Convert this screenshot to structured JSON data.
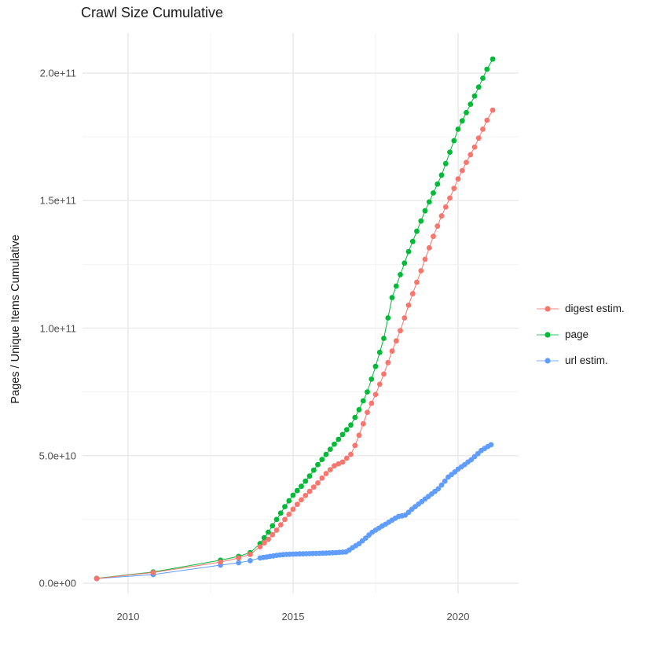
{
  "title": "Crawl Size Cumulative",
  "chart_data": {
    "type": "scatter",
    "title": "Crawl Size Cumulative",
    "xlabel": "",
    "ylabel": "Pages / Unique Items Cumulative",
    "value_unit": "billions (1e9) of pages / unique items",
    "xlim": [
      2008.6,
      2021.85
    ],
    "ylim_billions": [
      -4,
      215
    ],
    "grid": true,
    "legend_position": "right",
    "x_ticks": {
      "labels": [
        "2010",
        "2015",
        "2020"
      ],
      "years": [
        2010,
        2015,
        2020
      ]
    },
    "x_minor_years": [
      2012.5,
      2017.5
    ],
    "y_ticks": {
      "labels": [
        "0.0e+00",
        "5.0e+10",
        "1.0e+11",
        "1.5e+11",
        "2.0e+11"
      ],
      "values_billions": [
        0,
        50,
        100,
        150,
        200
      ]
    },
    "y_minor_billions": [
      25,
      75,
      125,
      175
    ],
    "series": [
      {
        "name": "digest estim.",
        "color": "#F8766D",
        "points": [
          [
            2009.05,
            1.85
          ],
          [
            2010.76,
            4.2
          ],
          [
            2012.8,
            8.3
          ],
          [
            2013.35,
            9.9
          ],
          [
            2013.7,
            11.3
          ],
          [
            2014.0,
            14.3
          ],
          [
            2014.125,
            15.8
          ],
          [
            2014.25,
            17.2
          ],
          [
            2014.375,
            19.0
          ],
          [
            2014.5,
            20.8
          ],
          [
            2014.625,
            22.9
          ],
          [
            2014.75,
            25.0
          ],
          [
            2014.875,
            27.0
          ],
          [
            2015.0,
            29.0
          ],
          [
            2015.125,
            30.9
          ],
          [
            2015.25,
            32.7
          ],
          [
            2015.375,
            34.4
          ],
          [
            2015.5,
            36.0
          ],
          [
            2015.625,
            37.7
          ],
          [
            2015.75,
            39.3
          ],
          [
            2015.875,
            41.2
          ],
          [
            2016.0,
            43.0
          ],
          [
            2016.125,
            44.5
          ],
          [
            2016.25,
            46.0
          ],
          [
            2016.375,
            46.8
          ],
          [
            2016.5,
            47.5
          ],
          [
            2016.625,
            49.0
          ],
          [
            2016.75,
            50.5
          ],
          [
            2016.875,
            54.0
          ],
          [
            2017.0,
            58.0
          ],
          [
            2017.125,
            62.5
          ],
          [
            2017.25,
            67.0
          ],
          [
            2017.375,
            70.5
          ],
          [
            2017.5,
            74.0
          ],
          [
            2017.625,
            78.0
          ],
          [
            2017.75,
            82.0
          ],
          [
            2017.875,
            86.5
          ],
          [
            2018.0,
            91.0
          ],
          [
            2018.125,
            95.0
          ],
          [
            2018.25,
            99.0
          ],
          [
            2018.375,
            104.0
          ],
          [
            2018.5,
            109.0
          ],
          [
            2018.625,
            113.5
          ],
          [
            2018.75,
            118.0
          ],
          [
            2018.875,
            122.5
          ],
          [
            2019.0,
            127.0
          ],
          [
            2019.125,
            131.5
          ],
          [
            2019.25,
            136.0
          ],
          [
            2019.375,
            140.0
          ],
          [
            2019.5,
            144.0
          ],
          [
            2019.625,
            147.5
          ],
          [
            2019.75,
            151.0
          ],
          [
            2019.875,
            154.8
          ],
          [
            2020.0,
            158.5
          ],
          [
            2020.125,
            161.8
          ],
          [
            2020.25,
            165.0
          ],
          [
            2020.375,
            168.0
          ],
          [
            2020.5,
            171.0
          ],
          [
            2020.625,
            174.5
          ],
          [
            2020.75,
            178.0
          ],
          [
            2020.875,
            181.5
          ],
          [
            2021.05,
            185.5
          ]
        ]
      },
      {
        "name": "page",
        "color": "#00BA38",
        "points": [
          [
            2009.05,
            1.9
          ],
          [
            2010.76,
            4.4
          ],
          [
            2012.8,
            9.0
          ],
          [
            2013.35,
            10.5
          ],
          [
            2013.7,
            12.0
          ],
          [
            2014.0,
            15.5
          ],
          [
            2014.125,
            17.8
          ],
          [
            2014.25,
            20.0
          ],
          [
            2014.375,
            22.5
          ],
          [
            2014.5,
            25.0
          ],
          [
            2014.625,
            27.5
          ],
          [
            2014.75,
            30.0
          ],
          [
            2014.875,
            32.3
          ],
          [
            2015.0,
            34.5
          ],
          [
            2015.125,
            36.3
          ],
          [
            2015.25,
            38.0
          ],
          [
            2015.375,
            40.0
          ],
          [
            2015.5,
            42.0
          ],
          [
            2015.625,
            44.3
          ],
          [
            2015.75,
            46.5
          ],
          [
            2015.875,
            48.5
          ],
          [
            2016.0,
            50.5
          ],
          [
            2016.125,
            52.5
          ],
          [
            2016.25,
            54.5
          ],
          [
            2016.375,
            56.4
          ],
          [
            2016.5,
            58.3
          ],
          [
            2016.625,
            60.2
          ],
          [
            2016.75,
            62.0
          ],
          [
            2016.875,
            65.0
          ],
          [
            2017.0,
            68.0
          ],
          [
            2017.125,
            71.5
          ],
          [
            2017.25,
            75.0
          ],
          [
            2017.375,
            80.0
          ],
          [
            2017.5,
            85.0
          ],
          [
            2017.625,
            90.5
          ],
          [
            2017.75,
            96.0
          ],
          [
            2017.875,
            104.0
          ],
          [
            2018.0,
            112.0
          ],
          [
            2018.125,
            116.5
          ],
          [
            2018.25,
            121.0
          ],
          [
            2018.375,
            125.5
          ],
          [
            2018.5,
            130.0
          ],
          [
            2018.625,
            134.0
          ],
          [
            2018.75,
            138.0
          ],
          [
            2018.875,
            142.0
          ],
          [
            2019.0,
            146.0
          ],
          [
            2019.125,
            149.5
          ],
          [
            2019.25,
            153.0
          ],
          [
            2019.375,
            156.5
          ],
          [
            2019.5,
            160.0
          ],
          [
            2019.625,
            164.5
          ],
          [
            2019.75,
            169.0
          ],
          [
            2019.875,
            173.5
          ],
          [
            2020.0,
            178.0
          ],
          [
            2020.125,
            181.3
          ],
          [
            2020.25,
            184.5
          ],
          [
            2020.375,
            187.8
          ],
          [
            2020.5,
            191.0
          ],
          [
            2020.625,
            194.5
          ],
          [
            2020.75,
            198.0
          ],
          [
            2020.875,
            201.5
          ],
          [
            2021.05,
            205.5
          ]
        ]
      },
      {
        "name": "url estim.",
        "color": "#619CFF",
        "points": [
          [
            2009.05,
            1.8
          ],
          [
            2010.76,
            3.4
          ],
          [
            2012.8,
            7.1
          ],
          [
            2013.35,
            8.0
          ],
          [
            2013.7,
            8.8
          ],
          [
            2014.0,
            9.9
          ],
          [
            2014.1,
            10.1
          ],
          [
            2014.2,
            10.3
          ],
          [
            2014.3,
            10.5
          ],
          [
            2014.4,
            10.7
          ],
          [
            2014.5,
            10.9
          ],
          [
            2014.6,
            11.05
          ],
          [
            2014.7,
            11.2
          ],
          [
            2014.8,
            11.27
          ],
          [
            2014.9,
            11.34
          ],
          [
            2015.0,
            11.4
          ],
          [
            2015.1,
            11.44
          ],
          [
            2015.2,
            11.48
          ],
          [
            2015.3,
            11.52
          ],
          [
            2015.4,
            11.56
          ],
          [
            2015.5,
            11.6
          ],
          [
            2015.6,
            11.64
          ],
          [
            2015.7,
            11.68
          ],
          [
            2015.8,
            11.72
          ],
          [
            2015.9,
            11.76
          ],
          [
            2016.0,
            11.8
          ],
          [
            2016.1,
            11.87
          ],
          [
            2016.2,
            11.93
          ],
          [
            2016.3,
            12.0
          ],
          [
            2016.4,
            12.08
          ],
          [
            2016.5,
            12.16
          ],
          [
            2016.6,
            12.25
          ],
          [
            2016.7,
            13.0
          ],
          [
            2016.8,
            13.9
          ],
          [
            2016.9,
            14.7
          ],
          [
            2017.0,
            15.5
          ],
          [
            2017.1,
            16.6
          ],
          [
            2017.2,
            17.7
          ],
          [
            2017.3,
            18.9
          ],
          [
            2017.4,
            20.0
          ],
          [
            2017.5,
            20.8
          ],
          [
            2017.6,
            21.6
          ],
          [
            2017.7,
            22.4
          ],
          [
            2017.8,
            23.1
          ],
          [
            2017.9,
            23.9
          ],
          [
            2018.0,
            24.7
          ],
          [
            2018.1,
            25.5
          ],
          [
            2018.2,
            26.2
          ],
          [
            2018.3,
            26.4
          ],
          [
            2018.4,
            26.7
          ],
          [
            2018.5,
            27.8
          ],
          [
            2018.6,
            29.0
          ],
          [
            2018.7,
            30.0
          ],
          [
            2018.8,
            31.0
          ],
          [
            2018.9,
            32.0
          ],
          [
            2019.0,
            33.0
          ],
          [
            2019.1,
            34.0
          ],
          [
            2019.2,
            35.0
          ],
          [
            2019.3,
            36.0
          ],
          [
            2019.4,
            37.0
          ],
          [
            2019.5,
            38.5
          ],
          [
            2019.6,
            40.0
          ],
          [
            2019.7,
            41.6
          ],
          [
            2019.8,
            42.6
          ],
          [
            2019.9,
            43.6
          ],
          [
            2020.0,
            44.7
          ],
          [
            2020.1,
            45.6
          ],
          [
            2020.2,
            46.5
          ],
          [
            2020.3,
            47.5
          ],
          [
            2020.4,
            48.4
          ],
          [
            2020.5,
            49.6
          ],
          [
            2020.6,
            50.8
          ],
          [
            2020.7,
            52.0
          ],
          [
            2020.8,
            52.8
          ],
          [
            2020.9,
            53.6
          ],
          [
            2021.0,
            54.3
          ]
        ]
      }
    ]
  },
  "colors": {
    "background": "#ffffff",
    "grid_major": "#ebebeb",
    "grid_minor": "#f2f2f2",
    "tick_label": "#4d4d4d",
    "text": "#1a1a1a"
  }
}
